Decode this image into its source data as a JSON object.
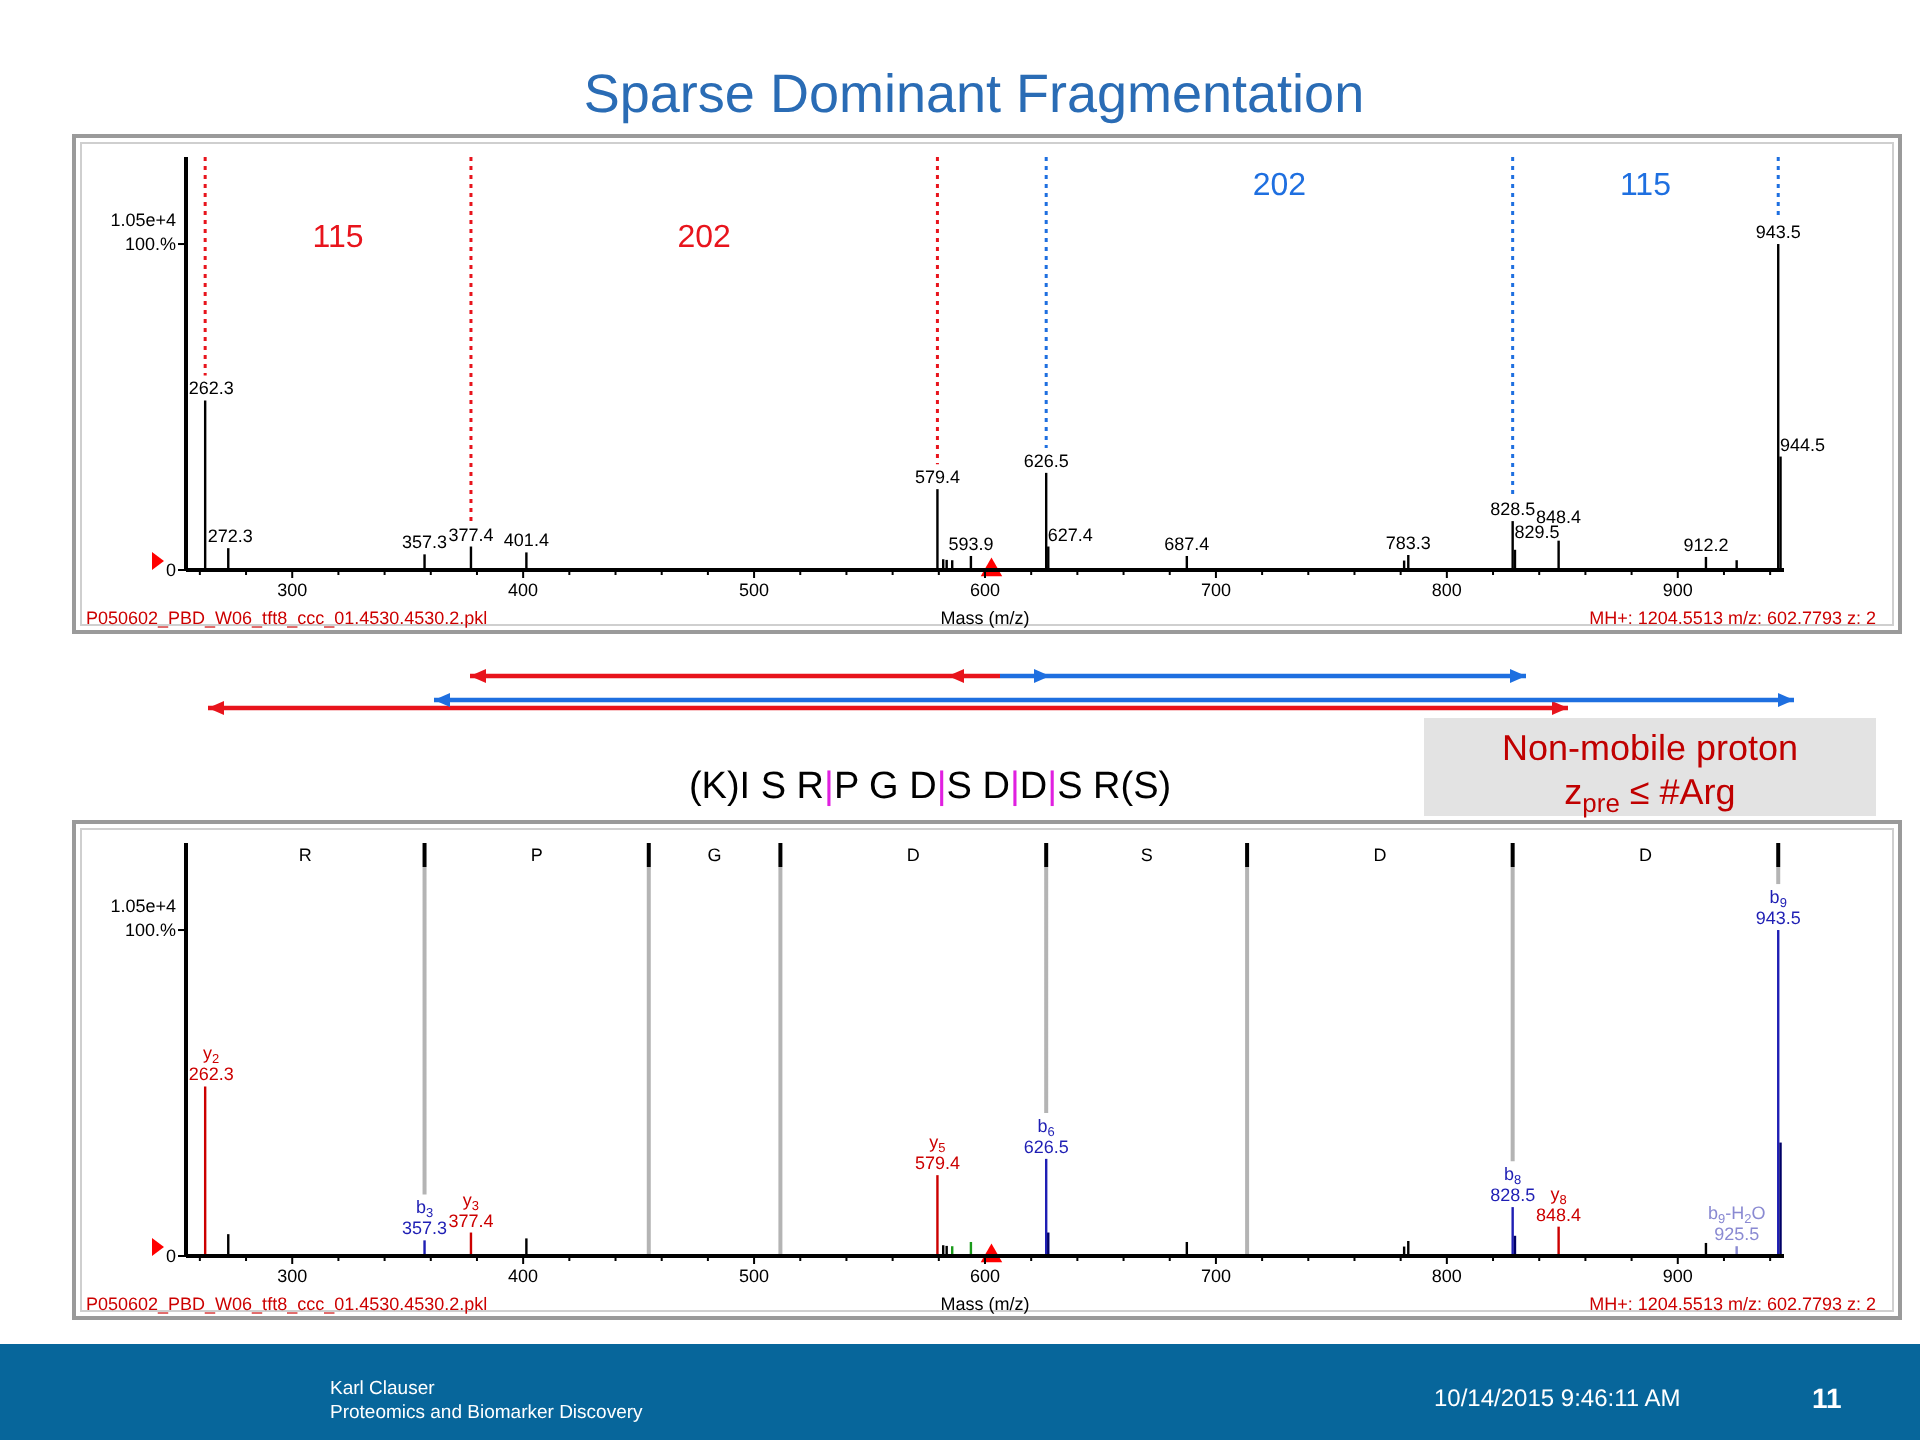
{
  "chart_data": [
    {
      "type": "bar",
      "title": "Sparse Dominant Fragmentation",
      "xlabel": "Mass (m/z)",
      "ylabel": "1.05e+4",
      "marker": "triangle",
      "xlim": [
        254,
        946
      ],
      "xticks": [
        {
          "value": 260,
          "label": null
        },
        {
          "value": 280,
          "label": null
        },
        300,
        {
          "value": 320,
          "label": null
        },
        {
          "value": 340,
          "label": null
        },
        {
          "value": 360,
          "label": null
        },
        {
          "value": 380,
          "label": null
        },
        400,
        {
          "value": 420,
          "label": null
        },
        {
          "value": 440,
          "label": null
        },
        {
          "value": 460,
          "label": null
        },
        {
          "value": 480,
          "label": null
        },
        500,
        {
          "value": 520,
          "label": null
        },
        {
          "value": 540,
          "label": null
        },
        {
          "value": 560,
          "label": null
        },
        {
          "value": 580,
          "label": null
        },
        600,
        {
          "value": 620,
          "label": null
        },
        {
          "value": 640,
          "label": null
        },
        {
          "value": 660,
          "label": null
        },
        {
          "value": 680,
          "label": null
        },
        700,
        {
          "value": 720,
          "label": null
        },
        {
          "value": 740,
          "label": null
        },
        {
          "value": 760,
          "label": null
        },
        {
          "value": 780,
          "label": null
        },
        800,
        {
          "value": 820,
          "label": null
        },
        {
          "value": 840,
          "label": null
        },
        {
          "value": 860,
          "label": null
        },
        {
          "value": 880,
          "label": null
        },
        900,
        {
          "value": 920,
          "label": null
        },
        {
          "value": 940,
          "label": null
        }
      ],
      "ylim": [
        0,
        126.7
      ],
      "yticks": [
        0,
        {
          "value": 100,
          "label": "100.%"
        }
      ],
      "series": [
        {
          "color": "#000000",
          "x": [
            262.3,
            272.3,
            357.3,
            377.4,
            401.4,
            579.4,
            581.9,
            583.4,
            585.8,
            593.9,
            626.5,
            627.4,
            687.4,
            781.5,
            783.3,
            828.5,
            829.5,
            848.4,
            912.2,
            925.5,
            943.5,
            944.5
          ],
          "values": [
            52,
            6.7,
            4.8,
            7.2,
            5.4,
            24.8,
            3.3,
            3.1,
            3,
            4.3,
            29.8,
            7.2,
            4.3,
            2.9,
            4.6,
            15,
            6.2,
            9,
            4,
            3,
            100,
            34.8
          ]
        },
        {
          "type": "scatter",
          "color": "#ff0000",
          "x": [
            602.8
          ],
          "values": [
            0
          ]
        }
      ],
      "ref_lines": [
        {
          "axis": "x",
          "value": 262.3,
          "color": "#e8141c",
          "line_style": "dotted"
        },
        {
          "axis": "x",
          "value": 377.4,
          "color": "#e8141c",
          "line_style": "dotted"
        },
        {
          "axis": "x",
          "value": 579.4,
          "color": "#e8141c",
          "line_style": "dotted"
        },
        {
          "axis": "x",
          "value": 626.5,
          "color": "#1e6fe0",
          "line_style": "dotted"
        },
        {
          "axis": "x",
          "value": 828.5,
          "color": "#1e6fe0",
          "line_style": "dotted"
        },
        {
          "axis": "x",
          "value": 943.5,
          "color": "#1e6fe0",
          "line_style": "dotted"
        }
      ],
      "annotations": [
        "P050602_PBD_W06_tft8_ccc_01.4530.4530.2.pkl",
        "MH+: 1204.5513 m/z: 602.7793 z: 2",
        "115",
        "202",
        "202",
        "115",
        {
          "text": "262.3",
          "x": 262.3,
          "y": 52
        },
        {
          "text": "272.3",
          "x": 272.3,
          "y": 6.7
        },
        {
          "text": "357.3",
          "x": 357.3,
          "y": 4.8
        },
        {
          "text": "377.4",
          "x": 377.4,
          "y": 7.2
        },
        {
          "text": "401.4",
          "x": 401.4,
          "y": 5.4
        },
        {
          "text": "579.4",
          "x": 579.4,
          "y": 24.8
        },
        {
          "text": "593.9",
          "x": 593.9,
          "y": 4.3
        },
        {
          "text": "626.5",
          "x": 626.5,
          "y": 29.8
        },
        {
          "text": "627.4",
          "x": 627.4,
          "y": 7.2
        },
        {
          "text": "687.4",
          "x": 687.4,
          "y": 4.3
        },
        {
          "text": "783.3",
          "x": 783.3,
          "y": 4.6
        },
        {
          "text": "828.5",
          "x": 828.5,
          "y": 15
        },
        {
          "text": "829.5",
          "x": 829.5,
          "y": 6.2
        },
        {
          "text": "848.4",
          "x": 848.4,
          "y": 9
        },
        {
          "text": "912.2",
          "x": 912.2,
          "y": 4
        },
        {
          "text": "943.5",
          "x": 943.5,
          "y": 100
        },
        {
          "text": "944.5",
          "x": 944.5,
          "y": 34.8
        }
      ]
    },
    {
      "type": "bar",
      "title": "(K)I S R|P G D|S D|D|S R(S)",
      "xlabel": "Mass (m/z)",
      "ylabel": "1.05e+4",
      "marker": "triangle",
      "xlim": [
        254,
        946
      ],
      "xticks": [
        {
          "value": 260,
          "label": null
        },
        {
          "value": 280,
          "label": null
        },
        300,
        {
          "value": 320,
          "label": null
        },
        {
          "value": 340,
          "label": null
        },
        {
          "value": 360,
          "label": null
        },
        {
          "value": 380,
          "label": null
        },
        400,
        {
          "value": 420,
          "label": null
        },
        {
          "value": 440,
          "label": null
        },
        {
          "value": 460,
          "label": null
        },
        {
          "value": 480,
          "label": null
        },
        500,
        {
          "value": 520,
          "label": null
        },
        {
          "value": 540,
          "label": null
        },
        {
          "value": 560,
          "label": null
        },
        {
          "value": 580,
          "label": null
        },
        600,
        {
          "value": 620,
          "label": null
        },
        {
          "value": 640,
          "label": null
        },
        {
          "value": 660,
          "label": null
        },
        {
          "value": 680,
          "label": null
        },
        700,
        {
          "value": 720,
          "label": null
        },
        {
          "value": 740,
          "label": null
        },
        {
          "value": 760,
          "label": null
        },
        {
          "value": 780,
          "label": null
        },
        800,
        {
          "value": 820,
          "label": null
        },
        {
          "value": 840,
          "label": null
        },
        {
          "value": 860,
          "label": null
        },
        {
          "value": 880,
          "label": null
        },
        900,
        {
          "value": 920,
          "label": null
        },
        {
          "value": 940,
          "label": null
        }
      ],
      "ylim": [
        0,
        126.7
      ],
      "yticks": [
        0,
        {
          "value": 100,
          "label": "100.%"
        }
      ],
      "series": [
        {
          "color": "#000000",
          "x": [
            272.3,
            401.4,
            581.9,
            583.4,
            687.4,
            781.5,
            783.3,
            912.2
          ],
          "values": [
            6.7,
            5.4,
            3.3,
            3.1,
            4.3,
            2.9,
            4.6,
            4
          ]
        },
        {
          "color": "#cc0000",
          "x": [
            262.3,
            377.4,
            579.4,
            848.4
          ],
          "values": [
            52,
            7.2,
            24.8,
            9
          ]
        },
        {
          "color": "#1f1fb4",
          "x": [
            357.3,
            626.5,
            828.5,
            943.5
          ],
          "values": [
            4.8,
            29.8,
            15,
            100
          ]
        },
        {
          "color": "#000066",
          "x": [
            627.4,
            829.5,
            944.5
          ],
          "values": [
            7.2,
            6.2,
            34.8
          ]
        },
        {
          "color": "#8a8ad2",
          "x": [
            925.5
          ],
          "values": [
            3
          ]
        },
        {
          "color": "#1a9a1a",
          "x": [
            585.8,
            593.9
          ],
          "values": [
            3,
            4.3
          ]
        },
        {
          "type": "scatter",
          "color": "#ff0000",
          "x": [
            602.8
          ],
          "values": [
            0
          ]
        }
      ],
      "ref_lines": [
        {
          "axis": "x",
          "value": 357.3,
          "color": "#b4b4b4",
          "line_style": "solid"
        },
        {
          "axis": "x",
          "value": 454.4,
          "color": "#b4b4b4",
          "line_style": "solid"
        },
        {
          "axis": "x",
          "value": 511.4,
          "color": "#b4b4b4",
          "line_style": "solid"
        },
        {
          "axis": "x",
          "value": 626.5,
          "color": "#b4b4b4",
          "line_style": "solid"
        },
        {
          "axis": "x",
          "value": 713.5,
          "color": "#b4b4b4",
          "line_style": "solid"
        },
        {
          "axis": "x",
          "value": 828.5,
          "color": "#b4b4b4",
          "line_style": "solid"
        },
        {
          "axis": "x",
          "value": 943.5,
          "color": "#b4b4b4",
          "line_style": "solid"
        }
      ],
      "annotations": [
        "P050602_PBD_W06_tft8_ccc_01.4530.4530.2.pkl",
        "MH+: 1204.5513 m/z: 602.7793 z: 2",
        "R",
        "P",
        "G",
        "D",
        "S",
        "D",
        "D",
        "Non-mobile proton",
        "z$_{pre}$ ≤ #Arg",
        "Karl Clauser",
        "Proteomics and Biomarker Discovery",
        "10/14/2015 9:46:11 AM",
        "11",
        {
          "text": "262.3",
          "x": 262.3,
          "y": 52
        },
        {
          "text": "y$_{2}$",
          "x": 262.3,
          "y": 52
        },
        {
          "text": "357.3",
          "x": 357.3,
          "y": 4.8
        },
        {
          "text": "b$_{3}$",
          "x": 357.3,
          "y": 4.8
        },
        {
          "text": "377.4",
          "x": 377.4,
          "y": 7.2
        },
        {
          "text": "y$_{3}$",
          "x": 377.4,
          "y": 7.2
        },
        {
          "text": "579.4",
          "x": 579.4,
          "y": 24.8
        },
        {
          "text": "y$_{5}$",
          "x": 579.4,
          "y": 24.8
        },
        {
          "text": "626.5",
          "x": 626.5,
          "y": 29.8
        },
        {
          "text": "b$_{6}$",
          "x": 626.5,
          "y": 29.8
        },
        {
          "text": "828.5",
          "x": 828.5,
          "y": 15
        },
        {
          "text": "b$_{8}$",
          "x": 828.5,
          "y": 15
        },
        {
          "text": "848.4",
          "x": 848.4,
          "y": 9
        },
        {
          "text": "y$_{8}$",
          "x": 848.4,
          "y": 9
        },
        {
          "text": "925.5",
          "x": 925.5,
          "y": 3
        },
        {
          "text": "b$_{9}$-H$_{2}$O",
          "x": 925.5,
          "y": 3
        },
        {
          "text": "943.5",
          "x": 943.5,
          "y": 100
        },
        {
          "text": "b$_{9}$",
          "x": 943.5,
          "y": 100
        }
      ]
    }
  ]
}
